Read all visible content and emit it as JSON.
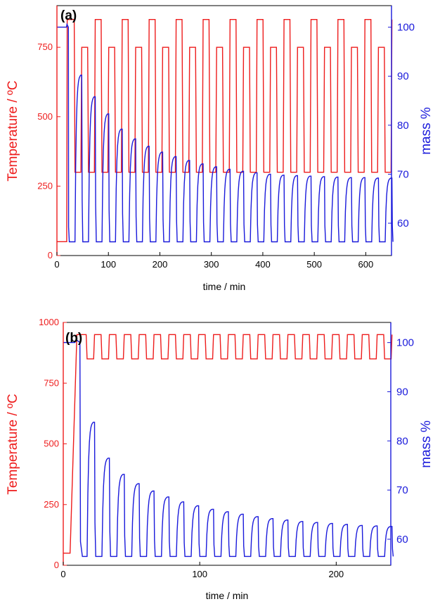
{
  "colors": {
    "temperature": "#ee1c1c",
    "mass": "#1a1adb",
    "axis": "#000000"
  },
  "chart_data": [
    {
      "type": "line",
      "panel_label": "(a)",
      "xlabel": "time / min",
      "ylabel_left": "Temperature / ºC",
      "ylabel_right": "mass %",
      "xlim": [
        0,
        650
      ],
      "ylim_left": [
        0,
        900
      ],
      "ylim_right": [
        53.4,
        104.4
      ],
      "x_ticks": [
        "0",
        "100",
        "200",
        "300",
        "400",
        "500",
        "600"
      ],
      "y_left_ticks": [
        "0",
        "250",
        "500",
        "750"
      ],
      "y_right_ticks": [
        "60",
        "70",
        "80",
        "90",
        "100"
      ],
      "grid": false,
      "legend": "none",
      "series": [
        {
          "axis": "left",
          "description": "square-wave temperature cycling between 300 and 750/850 °C",
          "initial_hold": 50,
          "ramp_start": 19,
          "low": 300,
          "high_levels_alternating": [
            850,
            750
          ],
          "cycle_period": 26.2,
          "start_time": 22,
          "end_time": 640
        },
        {
          "axis": "right",
          "description": "mass % during cycles",
          "initial_mass": 100,
          "low_mass": 56.2,
          "peak_masses": [
            90.2,
            85.8,
            82.3,
            79.2,
            77.2,
            75.7,
            74.5,
            73.6,
            72.8,
            72.1,
            71.5,
            71.0,
            70.6,
            70.3,
            70.0,
            69.8,
            69.7,
            69.6,
            69.5,
            69.4,
            69.3,
            69.3,
            69.2,
            69.2
          ]
        }
      ]
    },
    {
      "type": "line",
      "panel_label": "(b)",
      "xlabel": "time / min",
      "ylabel_left": "Temperature / ºC",
      "ylabel_right": "mass %",
      "xlim": [
        0,
        240
      ],
      "ylim_left": [
        0,
        1000
      ],
      "ylim_right": [
        54.7,
        104.1
      ],
      "x_ticks": [
        "0",
        "100",
        "200"
      ],
      "y_left_ticks": [
        "0",
        "250",
        "500",
        "750",
        "1000"
      ],
      "y_right_ticks": [
        "60",
        "70",
        "80",
        "90",
        "100"
      ],
      "grid": false,
      "legend": "none",
      "series": [
        {
          "axis": "left",
          "description": "square-wave temperature cycling between 850 and 950 °C",
          "initial_hold": 50,
          "ramp_start": 5,
          "low": 850,
          "high": 950,
          "cycle_period": 10.9,
          "start_time": 12,
          "end_time": 237
        },
        {
          "axis": "right",
          "description": "mass % during cycles",
          "initial_mass": 100,
          "low_mass": 56.5,
          "peak_masses": [
            83.8,
            76.5,
            73.2,
            71.3,
            69.8,
            68.6,
            67.6,
            66.8,
            66.1,
            65.6,
            65.1,
            64.6,
            64.2,
            63.9,
            63.6,
            63.4,
            63.2,
            63.0,
            62.8,
            62.7,
            62.6
          ]
        }
      ]
    }
  ]
}
